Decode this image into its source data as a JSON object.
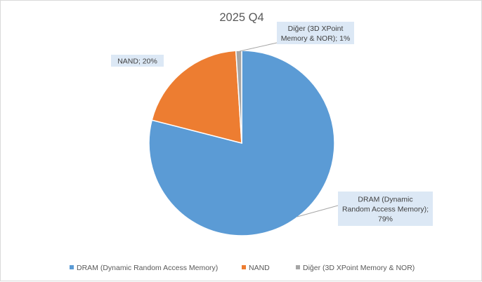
{
  "chart_data": {
    "type": "pie",
    "title": "2025 Q4",
    "slices": [
      {
        "name": "DRAM (Dynamic Random Access Memory)",
        "value": 79,
        "color": "#5b9bd5",
        "label_lines": [
          "DRAM (Dynamic",
          "Random Access Memory);",
          "79%"
        ]
      },
      {
        "name": "NAND",
        "value": 20,
        "color": "#ed7d31",
        "label_lines": [
          "NAND; 20%"
        ]
      },
      {
        "name": "Diğer (3D XPoint Memory & NOR)",
        "value": 1,
        "color": "#a5a5a5",
        "label_lines": [
          "Diğer (3D XPoint",
          "Memory & NOR); 1%"
        ]
      }
    ],
    "legend_position": "bottom",
    "label_box_color": "#dce8f5",
    "leader_line_color": "#a6a6a6"
  }
}
